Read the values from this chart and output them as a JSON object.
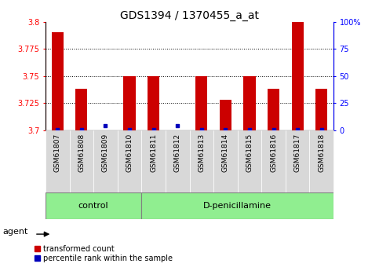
{
  "title": "GDS1394 / 1370455_a_at",
  "samples": [
    "GSM61807",
    "GSM61808",
    "GSM61809",
    "GSM61810",
    "GSM61811",
    "GSM61812",
    "GSM61813",
    "GSM61814",
    "GSM61815",
    "GSM61816",
    "GSM61817",
    "GSM61818"
  ],
  "red_values": [
    3.79,
    3.738,
    3.7,
    3.75,
    3.75,
    3.7,
    3.75,
    3.728,
    3.75,
    3.738,
    3.8,
    3.738
  ],
  "blue_values": [
    0.5,
    0.5,
    4.0,
    0.5,
    0.5,
    4.0,
    0.5,
    0.5,
    0.5,
    0.5,
    0.5,
    0.5
  ],
  "ylim_left": [
    3.7,
    3.8
  ],
  "ylim_right": [
    0,
    100
  ],
  "yticks_left": [
    3.7,
    3.725,
    3.75,
    3.775,
    3.8
  ],
  "yticks_right": [
    0,
    25,
    50,
    75,
    100
  ],
  "ytick_labels_right": [
    "0",
    "25",
    "50",
    "75",
    "100%"
  ],
  "grid_values": [
    3.725,
    3.75,
    3.775
  ],
  "bar_width": 0.5,
  "red_color": "#CC0000",
  "blue_color": "#0000BB",
  "control_count": 4,
  "treatment_count": 8,
  "control_label": "control",
  "treatment_label": "D-penicillamine",
  "agent_label": "agent",
  "legend_red": "transformed count",
  "legend_blue": "percentile rank within the sample",
  "title_fontsize": 10,
  "tick_fontsize": 7,
  "label_fontsize": 8,
  "sample_label_fontsize": 6.5,
  "group_label_fontsize": 8,
  "legend_fontsize": 7,
  "bg_color_sample": "#d8d8d8",
  "bg_color_control": "#90EE90",
  "bg_color_treatment": "#90EE90"
}
